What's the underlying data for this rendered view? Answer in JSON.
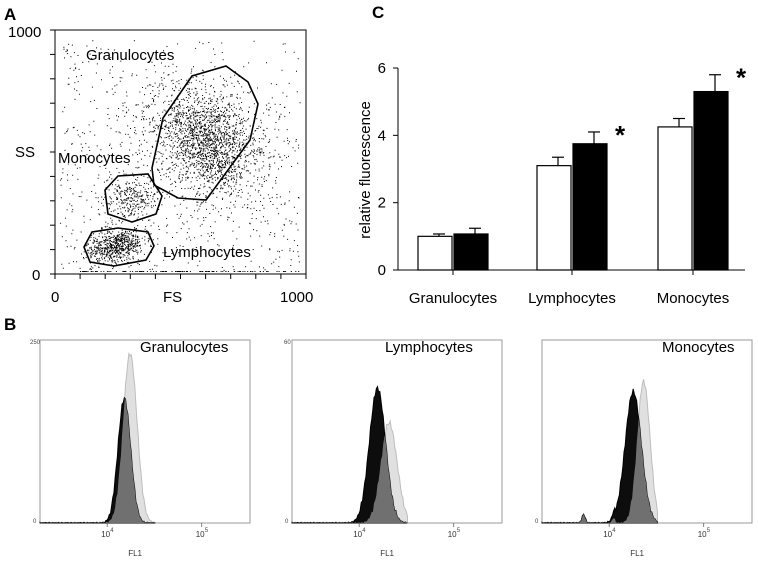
{
  "panels": {
    "a": {
      "letter": "A",
      "x_axis": {
        "label": "FS",
        "ticks": [
          "0",
          "1000"
        ]
      },
      "y_axis": {
        "label": "SS",
        "ticks": [
          "0",
          "1000"
        ]
      },
      "gates": [
        "Granulocytes",
        "Monocytes",
        "Lymphocytes"
      ]
    },
    "b": {
      "letter": "B",
      "xlabel": "FL1",
      "tick_low": "10",
      "tick_high": "10",
      "exp_low": "4",
      "exp_high": "5",
      "histograms": [
        {
          "label": "Granulocytes",
          "ymax": "250",
          "ymin": "0"
        },
        {
          "label": "Lymphocytes",
          "ymax": "60",
          "ymin": "0"
        },
        {
          "label": "Monocytes",
          "ymax": "",
          "ymin": "0"
        }
      ]
    },
    "c": {
      "letter": "C"
    }
  },
  "chart_data": {
    "type": "bar",
    "title": "",
    "xlabel": "",
    "ylabel": "relative fluorescence",
    "ylim": [
      0,
      6
    ],
    "yticks": [
      "0",
      "2",
      "4",
      "6"
    ],
    "categories": [
      "Granulocytes",
      "Lymphocytes",
      "Monocytes"
    ],
    "series": [
      {
        "fill": "#ffffff",
        "values": [
          1.0,
          3.1,
          4.25
        ],
        "errors": [
          0.07,
          0.25,
          0.25
        ]
      },
      {
        "fill": "#000000",
        "values": [
          1.07,
          3.75,
          5.3
        ],
        "errors": [
          0.17,
          0.35,
          0.5
        ]
      }
    ],
    "annotations": [
      {
        "category": "Lymphocytes",
        "text": "*"
      },
      {
        "category": "Monocytes",
        "text": "*"
      }
    ]
  }
}
